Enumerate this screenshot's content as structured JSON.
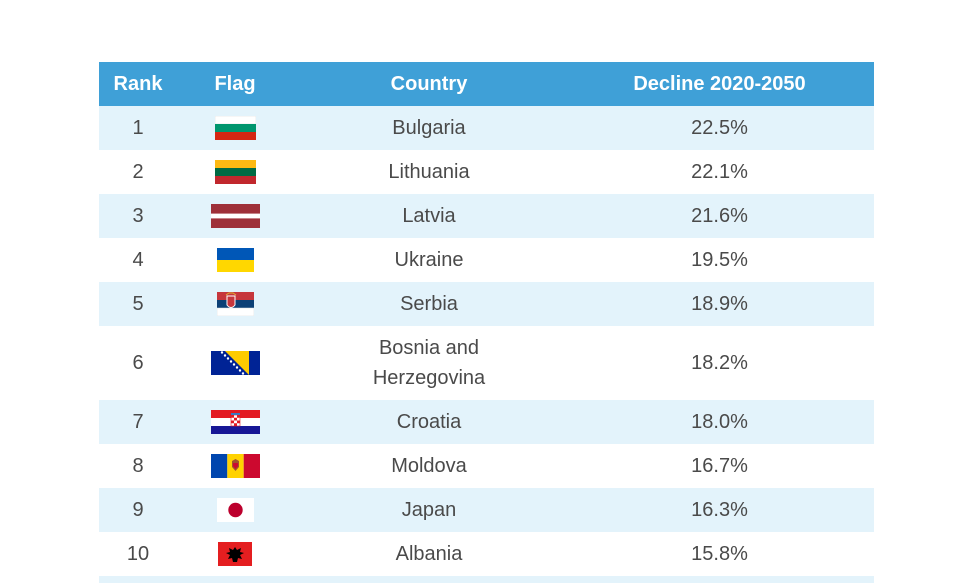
{
  "headers": {
    "rank": "Rank",
    "flag": "Flag",
    "country": "Country",
    "decline": "Decline 2020-2050"
  },
  "rows": [
    {
      "rank": "1",
      "country": "Bulgaria",
      "decline": "22.5%",
      "flag_icon": "bulgaria-flag-icon"
    },
    {
      "rank": "2",
      "country": "Lithuania",
      "decline": "22.1%",
      "flag_icon": "lithuania-flag-icon"
    },
    {
      "rank": "3",
      "country": "Latvia",
      "decline": "21.6%",
      "flag_icon": "latvia-flag-icon"
    },
    {
      "rank": "4",
      "country": "Ukraine",
      "decline": "19.5%",
      "flag_icon": "ukraine-flag-icon"
    },
    {
      "rank": "5",
      "country": "Serbia",
      "decline": "18.9%",
      "flag_icon": "serbia-flag-icon"
    },
    {
      "rank": "6",
      "country": "Bosnia and Herzegovina",
      "decline": "18.2%",
      "flag_icon": "bosnia-flag-icon"
    },
    {
      "rank": "7",
      "country": "Croatia",
      "decline": "18.0%",
      "flag_icon": "croatia-flag-icon"
    },
    {
      "rank": "8",
      "country": "Moldova",
      "decline": "16.7%",
      "flag_icon": "moldova-flag-icon"
    },
    {
      "rank": "9",
      "country": "Japan",
      "decline": "16.3%",
      "flag_icon": "japan-flag-icon"
    },
    {
      "rank": "10",
      "country": "Albania",
      "decline": "15.8%",
      "flag_icon": "albania-flag-icon"
    }
  ],
  "colors": {
    "header_bg": "#3fa0d7",
    "alt_row_bg": "#e3f3fb",
    "text": "#4a4a4a"
  }
}
